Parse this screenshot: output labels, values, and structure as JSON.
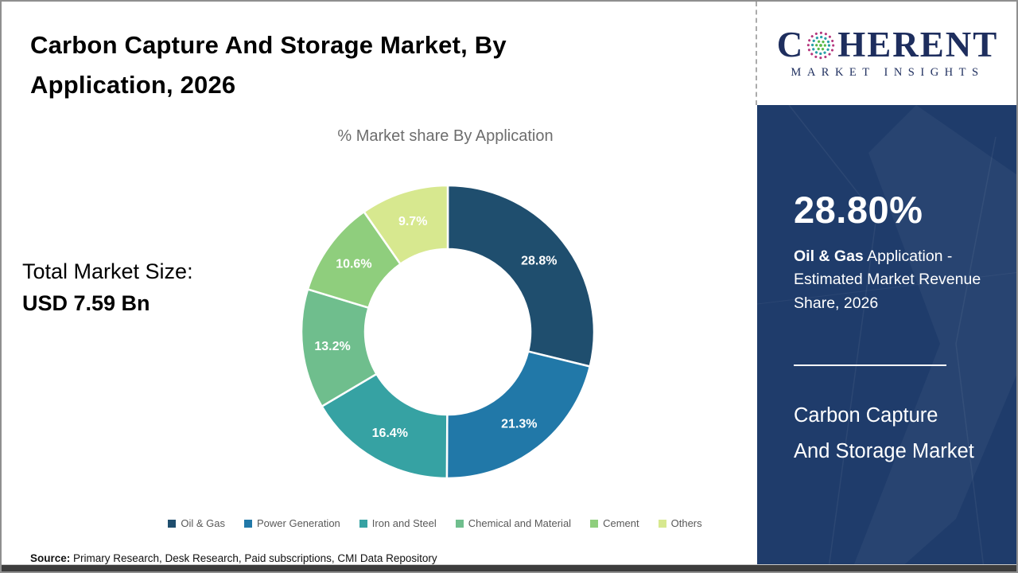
{
  "header": {
    "title": "Carbon Capture And Storage Market, By Application, 2026"
  },
  "chart_data": {
    "type": "pie",
    "donut": true,
    "title": "% Market share By Application",
    "categories": [
      "Oil & Gas",
      "Power Generation",
      "Iron and Steel",
      "Chemical and Material",
      "Cement",
      "Others"
    ],
    "values": [
      28.8,
      21.3,
      16.4,
      13.2,
      10.6,
      9.7
    ],
    "labels": [
      "28.8%",
      "21.3%",
      "16.4%",
      "13.2%",
      "10.6%",
      "9.7%"
    ],
    "colors": [
      "#1F4E6E",
      "#2178A8",
      "#36A2A3",
      "#6FBE8D",
      "#8FCE7D",
      "#D7E88F"
    ],
    "legend_position": "bottom",
    "start_angle_deg": -90,
    "direction": "clockwise"
  },
  "stats": {
    "total_label": "Total Market Size:",
    "total_value": "USD 7.59 Bn"
  },
  "source": {
    "prefix": "Source:",
    "text": " Primary Research, Desk Research, Paid subscriptions, CMI Data Repository"
  },
  "sidebar": {
    "logo": {
      "word_start": "C",
      "word_end": "HERENT",
      "subtitle": "MARKET INSIGHTS",
      "globe_colors": {
        "outer": "#b5367d",
        "middle": "#2a9fa8",
        "inner": "#58b947"
      }
    },
    "stat_value": "28.80%",
    "stat_desc_bold": "Oil & Gas",
    "stat_desc_rest": " Application - Estimated Market Revenue Share, 2026",
    "market_name": "Carbon Capture And Storage Market"
  }
}
